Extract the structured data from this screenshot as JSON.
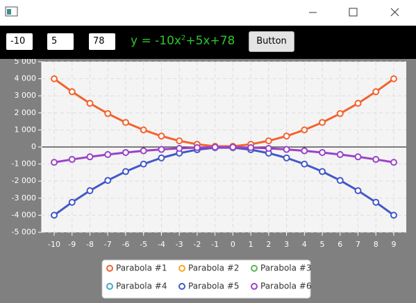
{
  "toolbar": {
    "fields": [
      "-10",
      "5",
      "78"
    ],
    "equation": {
      "prefix": "y = -10x",
      "sup": "2",
      "suffix": "+5x+78"
    },
    "button": "Button"
  },
  "chart_data": {
    "type": "line",
    "x": [
      -10,
      -9,
      -8,
      -7,
      -6,
      -5,
      -4,
      -3,
      -2,
      -1,
      0,
      1,
      2,
      3,
      4,
      5,
      6,
      7,
      8,
      9
    ],
    "series": [
      {
        "name": "Parabola #1",
        "color": "#f3622d",
        "values": [
          4000,
          3240,
          2560,
          1960,
          1440,
          1000,
          640,
          360,
          160,
          40,
          40,
          160,
          360,
          640,
          1000,
          1440,
          1960,
          2560,
          3240,
          4000
        ]
      },
      {
        "name": "Parabola #2",
        "color": "#fba71b",
        "values": [
          null,
          null,
          null,
          null,
          null,
          null,
          null,
          null,
          null,
          null,
          null,
          null,
          null,
          null,
          null,
          null,
          null,
          null,
          null,
          null
        ]
      },
      {
        "name": "Parabola #3",
        "color": "#57b757",
        "values": [
          null,
          null,
          null,
          null,
          null,
          null,
          null,
          null,
          null,
          null,
          null,
          null,
          null,
          null,
          null,
          null,
          null,
          null,
          null,
          null
        ]
      },
      {
        "name": "Parabola #4",
        "color": "#41a9c9",
        "values": [
          null,
          null,
          null,
          null,
          null,
          null,
          null,
          null,
          null,
          null,
          null,
          null,
          null,
          null,
          null,
          null,
          null,
          null,
          null,
          null
        ]
      },
      {
        "name": "Parabola #5",
        "color": "#4258c9",
        "values": [
          -4000,
          -3240,
          -2560,
          -1960,
          -1440,
          -1000,
          -640,
          -360,
          -160,
          -40,
          -40,
          -160,
          -360,
          -640,
          -1000,
          -1440,
          -1960,
          -2560,
          -3240,
          -4000
        ]
      },
      {
        "name": "Parabola #6",
        "color": "#9a42c8",
        "values": [
          -900,
          -729,
          -576,
          -441,
          -324,
          -225,
          -144,
          -81,
          -36,
          -9,
          -9,
          -36,
          -81,
          -144,
          -225,
          -324,
          -441,
          -576,
          -729,
          -900
        ]
      }
    ],
    "xlim": [
      -10.7,
      9.7
    ],
    "xticks": [
      -10,
      -9,
      -8,
      -7,
      -6,
      -5,
      -4,
      -3,
      -2,
      -1,
      0,
      1,
      2,
      3,
      4,
      5,
      6,
      7,
      8,
      9
    ],
    "ylim": [
      -5000,
      5000
    ],
    "yticks": [
      {
        "value": -5000,
        "label": "-5 000"
      },
      {
        "value": -4000,
        "label": "-4 000"
      },
      {
        "value": -3000,
        "label": "-3 000"
      },
      {
        "value": -2000,
        "label": "-2 000"
      },
      {
        "value": -1000,
        "label": "-1 000"
      },
      0,
      {
        "value": 1000,
        "label": "1 000"
      },
      {
        "value": 2000,
        "label": "2 000"
      },
      {
        "value": 3000,
        "label": "3 000"
      },
      {
        "value": 4000,
        "label": "4 000"
      },
      {
        "value": 5000,
        "label": "5 000"
      }
    ],
    "grid": true,
    "legend": "bottom"
  }
}
